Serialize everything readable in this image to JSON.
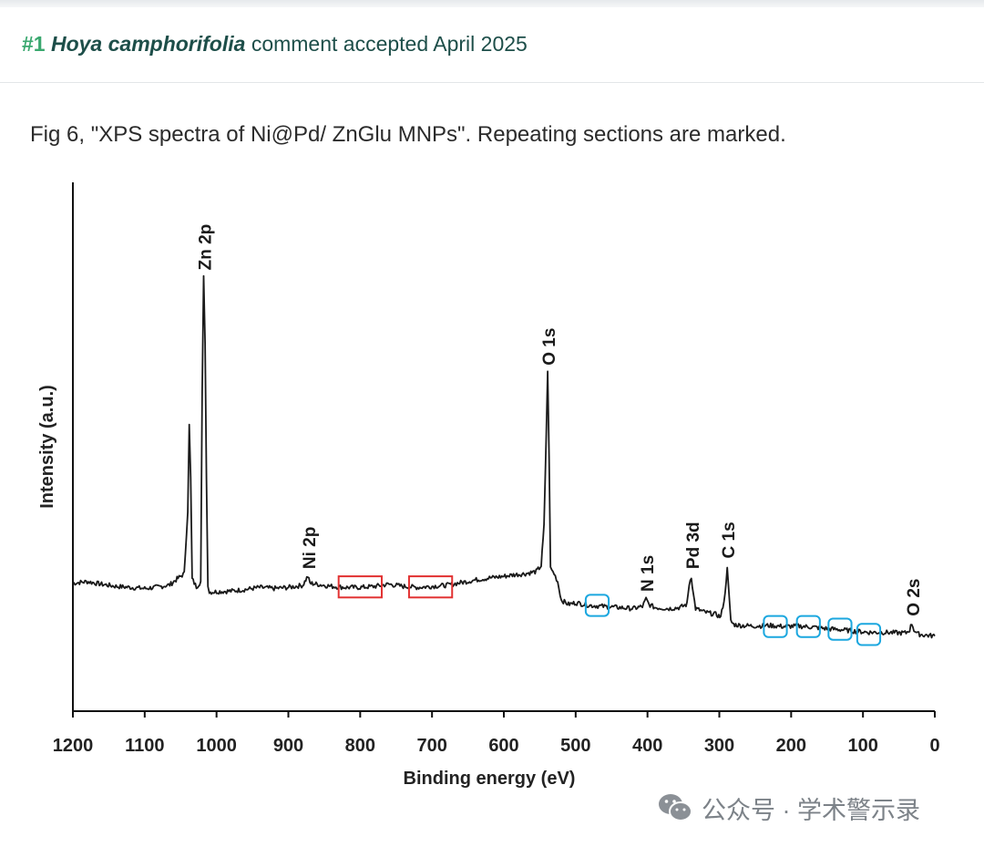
{
  "header": {
    "number": "#1",
    "species": "Hoya camphorifolia",
    "status": "comment accepted April 2025"
  },
  "caption": "Fig 6, \"XPS spectra of Ni@Pd/ ZnGlu MNPs\". Repeating sections are marked.",
  "watermark": {
    "icon": "wechat-icon",
    "text": "公众号 · 学术警示录"
  },
  "chart_data": {
    "type": "line",
    "title": "",
    "xlabel": "Binding energy (eV)",
    "ylabel": "Intensity (a.u.)",
    "xlim": [
      1200,
      0
    ],
    "x_reversed": true,
    "ylim": [
      0,
      100
    ],
    "grid": false,
    "xticks": [
      1200,
      1100,
      1000,
      900,
      800,
      700,
      600,
      500,
      400,
      300,
      200,
      100,
      0
    ],
    "series": [
      {
        "color": "#1a1a1a",
        "points": [
          [
            1200,
            24.2
          ],
          [
            1180,
            24.5
          ],
          [
            1160,
            24.0
          ],
          [
            1140,
            23.6
          ],
          [
            1120,
            23.4
          ],
          [
            1100,
            23.2
          ],
          [
            1080,
            23.5
          ],
          [
            1065,
            23.9
          ],
          [
            1055,
            25.0
          ],
          [
            1045,
            26.0
          ],
          [
            1040,
            38.0
          ],
          [
            1038,
            54.0
          ],
          [
            1036,
            44.0
          ],
          [
            1034,
            25.0
          ],
          [
            1028,
            23.5
          ],
          [
            1022,
            24.5
          ],
          [
            1020,
            60.0
          ],
          [
            1018,
            82.0
          ],
          [
            1016,
            70.0
          ],
          [
            1014,
            44.0
          ],
          [
            1012,
            24.0
          ],
          [
            1010,
            22.5
          ],
          [
            1000,
            22.6
          ],
          [
            980,
            22.7
          ],
          [
            960,
            23.0
          ],
          [
            940,
            23.4
          ],
          [
            920,
            23.2
          ],
          [
            900,
            23.4
          ],
          [
            880,
            23.8
          ],
          [
            873,
            25.5
          ],
          [
            870,
            24.2
          ],
          [
            860,
            24.0
          ],
          [
            840,
            23.6
          ],
          [
            820,
            23.4
          ],
          [
            800,
            23.4
          ],
          [
            780,
            23.6
          ],
          [
            760,
            24.0
          ],
          [
            740,
            23.6
          ],
          [
            720,
            23.4
          ],
          [
            700,
            23.6
          ],
          [
            680,
            23.8
          ],
          [
            660,
            24.3
          ],
          [
            640,
            24.8
          ],
          [
            620,
            25.2
          ],
          [
            600,
            25.5
          ],
          [
            585,
            25.8
          ],
          [
            570,
            26.0
          ],
          [
            555,
            26.4
          ],
          [
            548,
            27.5
          ],
          [
            544,
            35.0
          ],
          [
            541,
            52.0
          ],
          [
            539,
            64.0
          ],
          [
            537,
            48.0
          ],
          [
            535,
            27.0
          ],
          [
            530,
            26.0
          ],
          [
            525,
            24.5
          ],
          [
            520,
            21.0
          ],
          [
            510,
            20.2
          ],
          [
            500,
            20.5
          ],
          [
            480,
            20.0
          ],
          [
            460,
            19.8
          ],
          [
            440,
            19.6
          ],
          [
            420,
            19.4
          ],
          [
            407,
            19.8
          ],
          [
            402,
            21.2
          ],
          [
            398,
            20.2
          ],
          [
            390,
            19.6
          ],
          [
            370,
            19.4
          ],
          [
            355,
            19.6
          ],
          [
            345,
            20.2
          ],
          [
            342,
            24.0
          ],
          [
            339,
            25.5
          ],
          [
            336,
            22.0
          ],
          [
            333,
            19.4
          ],
          [
            320,
            18.7
          ],
          [
            305,
            18.3
          ],
          [
            298,
            17.8
          ],
          [
            292,
            22.0
          ],
          [
            289,
            27.5
          ],
          [
            287,
            23.0
          ],
          [
            284,
            17.0
          ],
          [
            280,
            16.4
          ],
          [
            270,
            16.2
          ],
          [
            250,
            16.1
          ],
          [
            230,
            16.2
          ],
          [
            210,
            16.0
          ],
          [
            190,
            16.1
          ],
          [
            170,
            15.9
          ],
          [
            150,
            15.6
          ],
          [
            130,
            15.4
          ],
          [
            110,
            15.1
          ],
          [
            90,
            14.9
          ],
          [
            70,
            14.9
          ],
          [
            50,
            14.8
          ],
          [
            40,
            14.8
          ],
          [
            35,
            15.4
          ],
          [
            32,
            16.6
          ],
          [
            29,
            15.4
          ],
          [
            24,
            14.6
          ],
          [
            15,
            14.4
          ],
          [
            0,
            14.2
          ]
        ]
      }
    ],
    "annotations": [
      {
        "text": "Zn 2p",
        "x": 1018
      },
      {
        "text": "Ni 2p",
        "x": 873
      },
      {
        "text": "O 1s",
        "x": 539
      },
      {
        "text": "N 1s",
        "x": 402
      },
      {
        "text": "Pd 3d",
        "x": 339
      },
      {
        "text": "C 1s",
        "x": 289
      },
      {
        "text": "O 2s",
        "x": 32
      }
    ],
    "marked_regions": [
      {
        "color": "#e23232",
        "x_range": [
          830,
          770
        ],
        "y_range": [
          21.5,
          25.5
        ]
      },
      {
        "color": "#e23232",
        "x_range": [
          732,
          672
        ],
        "y_range": [
          21.5,
          25.5
        ]
      },
      {
        "color": "#1ba7df",
        "x_range": [
          486,
          454
        ],
        "y_range": [
          18.0,
          22.0
        ]
      },
      {
        "color": "#1ba7df",
        "x_range": [
          238,
          206
        ],
        "y_range": [
          14.0,
          18.0
        ]
      },
      {
        "color": "#1ba7df",
        "x_range": [
          192,
          160
        ],
        "y_range": [
          14.0,
          18.0
        ]
      },
      {
        "color": "#1ba7df",
        "x_range": [
          148,
          116
        ],
        "y_range": [
          13.5,
          17.5
        ]
      },
      {
        "color": "#1ba7df",
        "x_range": [
          108,
          76
        ],
        "y_range": [
          12.5,
          16.5
        ]
      }
    ]
  }
}
